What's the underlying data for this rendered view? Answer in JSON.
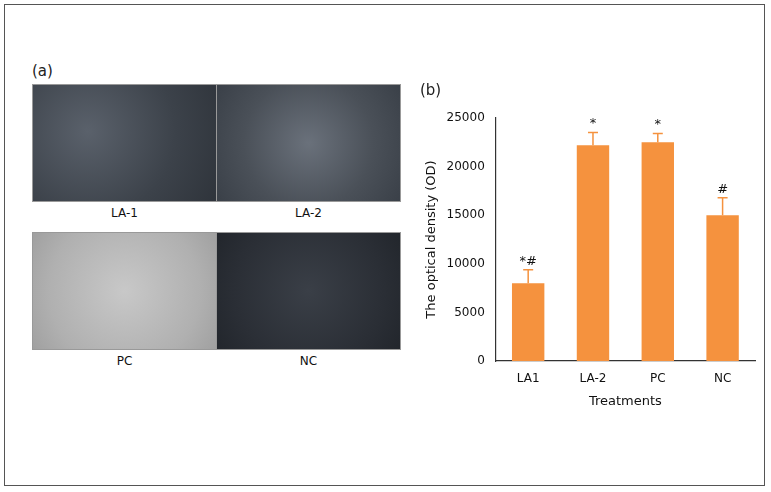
{
  "panel_a": {
    "label": "(a)",
    "images": [
      "LA-1",
      "LA-2",
      "PC",
      "NC"
    ]
  },
  "chart_data": {
    "type": "bar",
    "title": "(b)",
    "x_label": "Treatments",
    "y_label": "The optical density (OD)",
    "categories": [
      "LA1",
      "LA-2",
      "PC",
      "NC"
    ],
    "values": [
      8000,
      22200,
      22500,
      15000
    ],
    "errors": [
      1400,
      1300,
      900,
      1800
    ],
    "annotations": [
      "*#",
      "*",
      "*",
      "#"
    ],
    "color": "#f5923e",
    "ylim": [
      0,
      25000
    ],
    "yticks": [
      0,
      5000,
      10000,
      15000,
      20000,
      25000
    ],
    "grid": false
  }
}
